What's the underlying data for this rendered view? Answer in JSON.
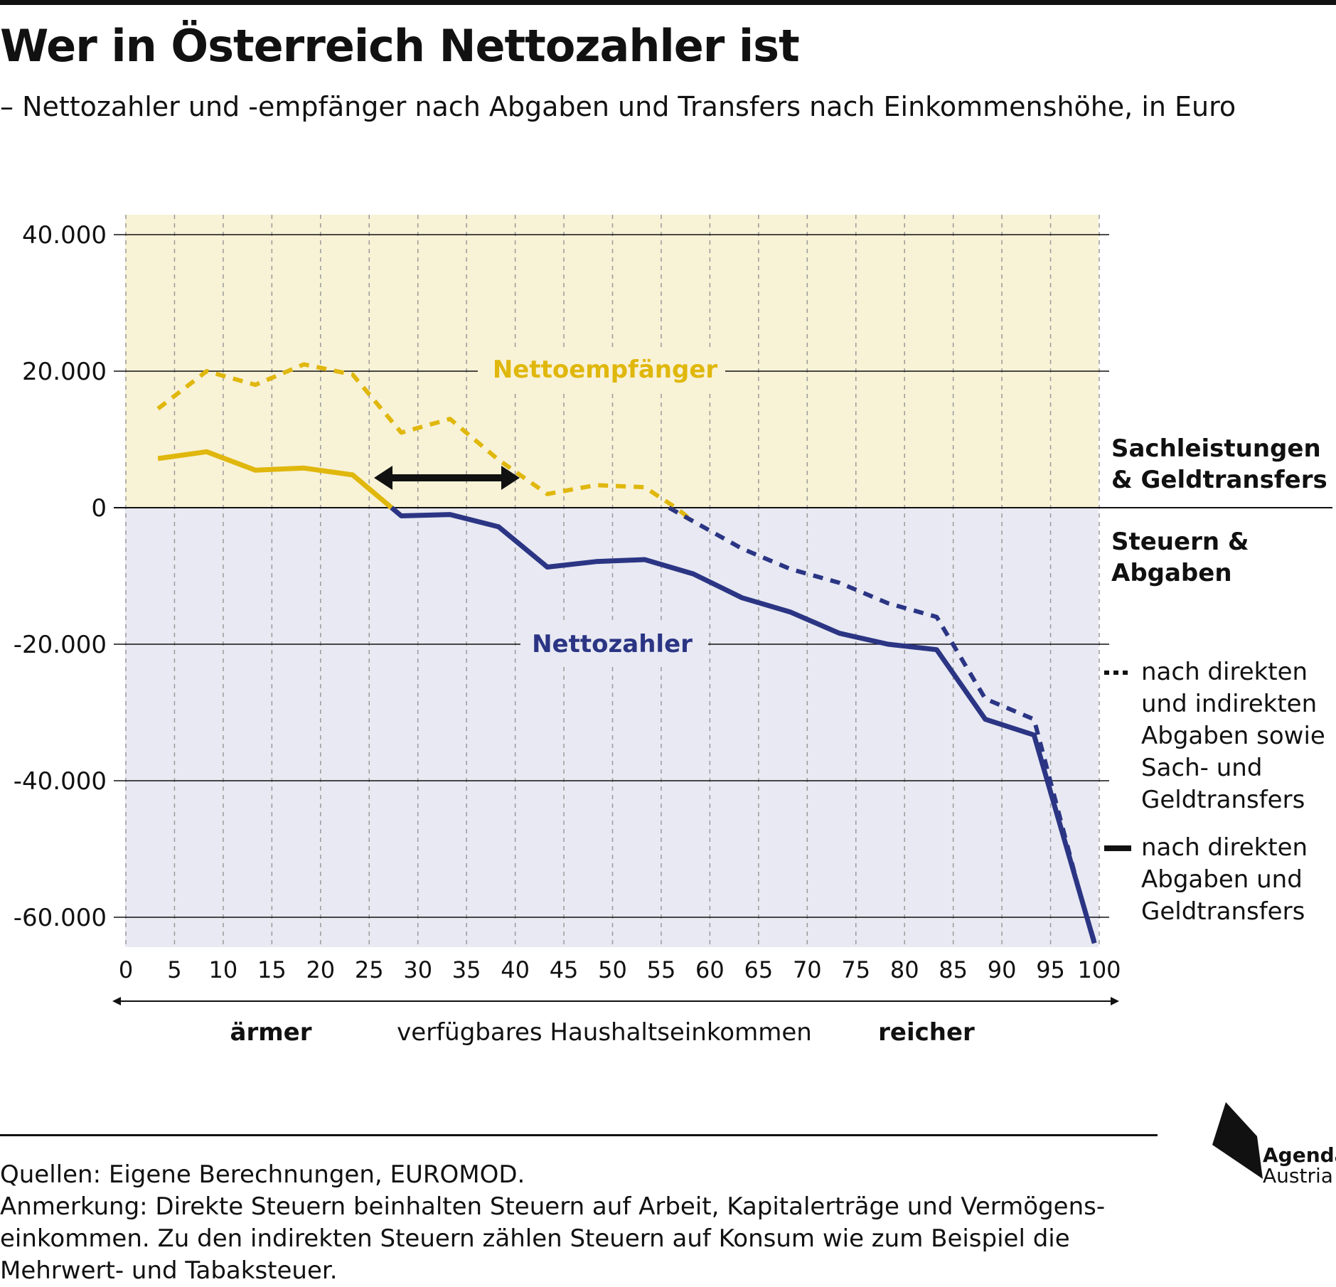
{
  "title": "Wer in Österreich Nettozahler ist",
  "subtitle": "– Nettozahler und -empfänger nach Abgaben und Transfers nach Einkommenshöhe, in Euro",
  "colors": {
    "recipient": "#e0b70c",
    "payer": "#2b3584",
    "recipient_bg": "#f8f2d6",
    "payer_bg": "#e8e9f2",
    "text": "#111111"
  },
  "chart_data": {
    "type": "line",
    "x_ticks": [
      0,
      5,
      10,
      15,
      20,
      25,
      30,
      35,
      40,
      45,
      50,
      55,
      60,
      65,
      70,
      75,
      80,
      85,
      90,
      95,
      100
    ],
    "y_ticks": [
      40000,
      20000,
      0,
      -20000,
      -40000,
      -60000
    ],
    "y_tick_labels": [
      "40.000",
      "20.000",
      "0",
      "-20.000",
      "-40.000",
      "-60.000"
    ],
    "x_tick_labels": [
      "0",
      "5",
      "10",
      "15",
      "20",
      "25",
      "30",
      "35",
      "40",
      "45",
      "50",
      "55",
      "60",
      "65",
      "70",
      "75",
      "80",
      "85",
      "90",
      "95",
      "100"
    ],
    "xlim": [
      0,
      100
    ],
    "ylim": [
      -64500,
      43000
    ],
    "grid": true,
    "series": [
      {
        "name": "nach direkten und indirekten Abgaben sowie Sach- und Geldtransfers",
        "style": "dashed",
        "x": [
          3.3,
          8.3,
          13.3,
          18.3,
          23.3,
          28.3,
          33.3,
          38.3,
          43.3,
          48.3,
          53.3,
          56.5,
          58.3,
          63.3,
          68.3,
          73.3,
          78.3,
          83.3,
          88.3,
          93.3,
          98.3,
          99.5
        ],
        "values": [
          14500,
          20000,
          18000,
          21000,
          19500,
          11000,
          13000,
          7000,
          2000,
          3300,
          3000,
          0,
          -2000,
          -6000,
          -9000,
          -11000,
          -14000,
          -16000,
          -28000,
          -31000,
          -58000,
          -63500
        ]
      },
      {
        "name": "nach direkten Abgaben und Geldtransfers",
        "style": "solid",
        "x": [
          3.3,
          8.3,
          13.3,
          18.3,
          23.3,
          28.3,
          33.3,
          38.3,
          43.3,
          48.3,
          53.3,
          58.3,
          63.3,
          68.3,
          73.3,
          78.3,
          83.3,
          88.3,
          93.3,
          99.5
        ],
        "values": [
          7200,
          8200,
          5500,
          5800,
          4800,
          -1200,
          -1000,
          -2800,
          -8700,
          -7900,
          -7600,
          -9700,
          -13200,
          -15300,
          -18400,
          -20000,
          -20800,
          -31000,
          -33300,
          -63800
        ]
      }
    ],
    "zone_labels": {
      "positive": "Nettoempfänger",
      "negative": "Nettozahler"
    },
    "right_labels": {
      "positive": "Sachleistungen & Geldtransfers",
      "negative": "Steuern & Abgaben"
    },
    "arrow_range": [
      25,
      40
    ],
    "x_axis_labels": {
      "poorer": "ärmer",
      "center": "verfügbares Haushaltseinkommen",
      "richer": "reicher"
    }
  },
  "legend": {
    "dashed_lines": [
      "nach direkten",
      "und indirekten",
      "Abgaben sowie",
      "Sach- und",
      "Geldtransfers"
    ],
    "solid_lines": [
      "nach direkten",
      "Abgaben und",
      "Geldtransfers"
    ]
  },
  "footer": {
    "sources": "Quellen: Eigene Berechnungen, EUROMOD.",
    "note_line1": "Anmerkung: Direkte Steuern beinhalten Steuern auf Arbeit, Kapitalerträge und Vermögens-",
    "note_line2": "einkommen. Zu den indirekten Steuern zählen Steuern auf Konsum wie zum Beispiel die",
    "note_line3": "Mehrwert- und Tabaksteuer."
  },
  "logo": {
    "line1": "Agenda",
    "line2": "Austria"
  }
}
